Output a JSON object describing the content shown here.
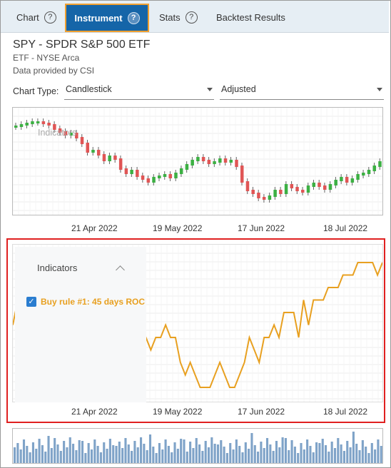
{
  "tabs": [
    {
      "label": "Chart",
      "help": "?"
    },
    {
      "label": "Instrument",
      "help": "?"
    },
    {
      "label": "Stats",
      "help": "?"
    },
    {
      "label": "Backtest Results"
    }
  ],
  "instrument": {
    "title": "SPY - SPDR S&P 500 ETF",
    "exchange": "ETF - NYSE Arca",
    "provider": "Data provided by CSI"
  },
  "chart_type": {
    "label": "Chart Type:",
    "value": "Candlestick",
    "adjust": "Adjusted"
  },
  "price_chart": {
    "watermark": "Indicators"
  },
  "x_axis_labels": [
    "21 Apr 2022",
    "19 May 2022",
    "17 Jun 2022",
    "18 Jul 2022"
  ],
  "indicator_panel": {
    "title": "Indicators",
    "rule_label": "Buy rule #1: 45 days ROC",
    "checked": true
  },
  "colors": {
    "accent": "#1565a8",
    "highlight": "#f0a030",
    "indicator_line": "#e8a020",
    "up": "#3cb043",
    "down": "#e05555",
    "volume": "#7fa3c8",
    "selection": "#e02020"
  },
  "chart_data": [
    {
      "type": "line",
      "title": "",
      "series": [
        {
          "name": "Buy rule #1: 45 days ROC",
          "values": [
            5,
            7,
            9,
            9,
            7,
            5,
            8,
            6,
            6,
            3,
            4,
            5,
            9,
            2,
            2,
            3,
            3,
            3,
            2,
            3,
            4,
            3,
            3,
            4,
            5,
            4,
            3,
            4,
            3,
            4,
            4,
            5,
            4,
            4,
            2,
            1,
            2,
            1,
            0,
            0,
            0,
            1,
            2,
            1,
            0,
            0,
            1,
            2,
            4,
            3,
            2,
            4,
            4,
            5,
            4,
            6,
            6,
            6,
            4,
            7,
            5,
            7,
            7,
            7,
            8,
            8,
            8,
            9,
            9,
            9,
            10,
            10,
            10,
            10,
            9,
            10
          ]
        }
      ],
      "x_range": [
        "21 Apr 2022",
        "18 Jul 2022"
      ]
    }
  ]
}
